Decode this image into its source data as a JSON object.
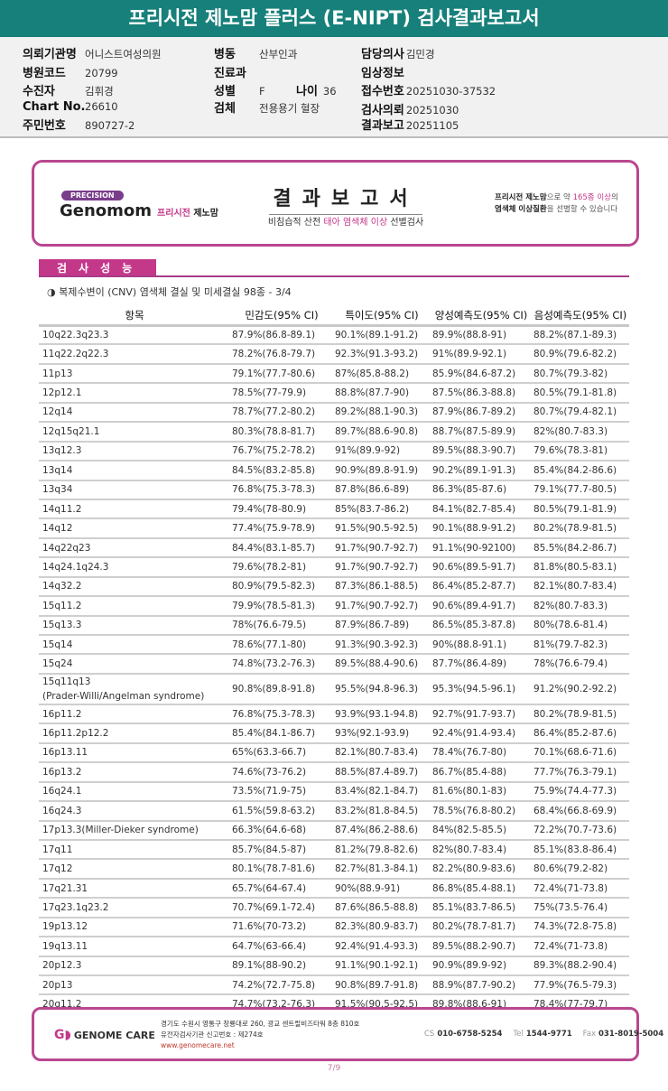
{
  "title": "프리시전 제노맘 플러스 (E-NIPT) 검사결과보고서",
  "info": {
    "institution": {
      "label": "의뢰기관명",
      "value": "어니스트여성의원"
    },
    "hospital_code": {
      "label": "병원코드",
      "value": "20799"
    },
    "patient": {
      "label": "수진자",
      "value": "김휘경"
    },
    "chart_no": {
      "label": "Chart No.",
      "value": "26610"
    },
    "resident_no": {
      "label": "주민번호",
      "value": "890727-2"
    },
    "ward": {
      "label": "병동",
      "value": "산부인과"
    },
    "department": {
      "label": "진료과",
      "value": ""
    },
    "sex": {
      "label": "성별",
      "value": "F"
    },
    "age": {
      "label": "나이",
      "value": "36"
    },
    "specimen": {
      "label": "검체",
      "value": "전용용기 혈장"
    },
    "doctor": {
      "label": "담당의사",
      "value": "김민경"
    },
    "clinical_info": {
      "label": "임상정보",
      "value": ""
    },
    "receipt_no": {
      "label": "접수번호",
      "value": "20251030-37532"
    },
    "request_date": {
      "label": "검사의뢰",
      "value": "20251030"
    },
    "report_date": {
      "label": "결과보고",
      "value": "20251105"
    }
  },
  "banner": {
    "precision": "PRECISION",
    "brand": "Genomom",
    "brand_kr_a": "프리시전",
    "brand_kr_b": "제노맘",
    "title": "결과보고서",
    "subtitle_a": "비침습적 산전",
    "subtitle_b": "태아 염색체 이상",
    "subtitle_c": "선별검사",
    "right_a": "프리시전 제노맘",
    "right_b": "으로 약",
    "right_c": "165종 이상",
    "right_d": "의",
    "right_e": "염색체 이상질환",
    "right_f": "을 선별할 수 있습니다"
  },
  "section": {
    "title": "검사성능",
    "subtitle": "◑ 복제수변이 (CNV) 염색체 결실 및 미세결실 98종 - 3/4"
  },
  "table": {
    "headers": [
      "항목",
      "민감도(95% CI)",
      "특이도(95% CI)",
      "양성예측도(95% CI)",
      "음성예측도(95% CI)"
    ],
    "rows": [
      [
        "10q22.3q23.3",
        "87.9%(86.8-89.1)",
        "90.1%(89.1-91.2)",
        "89.9%(88.8-91)",
        "88.2%(87.1-89.3)"
      ],
      [
        "11q22.2q22.3",
        "78.2%(76.8-79.7)",
        "92.3%(91.3-93.2)",
        "91%(89.9-92.1)",
        "80.9%(79.6-82.2)"
      ],
      [
        "11p13",
        "79.1%(77.7-80.6)",
        "87%(85.8-88.2)",
        "85.9%(84.6-87.2)",
        "80.7%(79.3-82)"
      ],
      [
        "12p12.1",
        "78.5%(77-79.9)",
        "88.8%(87.7-90)",
        "87.5%(86.3-88.8)",
        "80.5%(79.1-81.8)"
      ],
      [
        "12q14",
        "78.7%(77.2-80.2)",
        "89.2%(88.1-90.3)",
        "87.9%(86.7-89.2)",
        "80.7%(79.4-82.1)"
      ],
      [
        "12q15q21.1",
        "80.3%(78.8-81.7)",
        "89.7%(88.6-90.8)",
        "88.7%(87.5-89.9)",
        "82%(80.7-83.3)"
      ],
      [
        "13q12.3",
        "76.7%(75.2-78.2)",
        "91%(89.9-92)",
        "89.5%(88.3-90.7)",
        "79.6%(78.3-81)"
      ],
      [
        "13q14",
        "84.5%(83.2-85.8)",
        "90.9%(89.8-91.9)",
        "90.2%(89.1-91.3)",
        "85.4%(84.2-86.6)"
      ],
      [
        "13q34",
        "76.8%(75.3-78.3)",
        "87.8%(86.6-89)",
        "86.3%(85-87.6)",
        "79.1%(77.7-80.5)"
      ],
      [
        "14q11.2",
        "79.4%(78-80.9)",
        "85%(83.7-86.2)",
        "84.1%(82.7-85.4)",
        "80.5%(79.1-81.9)"
      ],
      [
        "14q12",
        "77.4%(75.9-78.9)",
        "91.5%(90.5-92.5)",
        "90.1%(88.9-91.2)",
        "80.2%(78.9-81.5)"
      ],
      [
        "14q22q23",
        "84.4%(83.1-85.7)",
        "91.7%(90.7-92.7)",
        "91.1%(90-92100)",
        "85.5%(84.2-86.7)"
      ],
      [
        "14q24.1q24.3",
        "79.6%(78.2-81)",
        "91.7%(90.7-92.7)",
        "90.6%(89.5-91.7)",
        "81.8%(80.5-83.1)"
      ],
      [
        "14q32.2",
        "80.9%(79.5-82.3)",
        "87.3%(86.1-88.5)",
        "86.4%(85.2-87.7)",
        "82.1%(80.7-83.4)"
      ],
      [
        "15q11.2",
        "79.9%(78.5-81.3)",
        "91.7%(90.7-92.7)",
        "90.6%(89.4-91.7)",
        "82%(80.7-83.3)"
      ],
      [
        "15q13.3",
        "78%(76.6-79.5)",
        "87.9%(86.7-89)",
        "86.5%(85.3-87.8)",
        "80%(78.6-81.4)"
      ],
      [
        "15q14",
        "78.6%(77.1-80)",
        "91.3%(90.3-92.3)",
        "90%(88.8-91.1)",
        "81%(79.7-82.3)"
      ],
      [
        "15q24",
        "74.8%(73.2-76.3)",
        "89.5%(88.4-90.6)",
        "87.7%(86.4-89)",
        "78%(76.6-79.4)"
      ],
      [
        "15q11q13\n(Prader-Willi/Angelman syndrome)",
        "90.8%(89.8-91.8)",
        "95.5%(94.8-96.3)",
        "95.3%(94.5-96.1)",
        "91.2%(90.2-92.2)"
      ],
      [
        "16p11.2",
        "76.8%(75.3-78.3)",
        "93.9%(93.1-94.8)",
        "92.7%(91.7-93.7)",
        "80.2%(78.9-81.5)"
      ],
      [
        "16p11.2p12.2",
        "85.4%(84.1-86.7)",
        "93%(92.1-93.9)",
        "92.4%(91.4-93.4)",
        "86.4%(85.2-87.6)"
      ],
      [
        "16p13.11",
        "65%(63.3-66.7)",
        "82.1%(80.7-83.4)",
        "78.4%(76.7-80)",
        "70.1%(68.6-71.6)"
      ],
      [
        "16p13.2",
        "74.6%(73-76.2)",
        "88.5%(87.4-89.7)",
        "86.7%(85.4-88)",
        "77.7%(76.3-79.1)"
      ],
      [
        "16q24.1",
        "73.5%(71.9-75)",
        "83.4%(82.1-84.7)",
        "81.6%(80.1-83)",
        "75.9%(74.4-77.3)"
      ],
      [
        "16q24.3",
        "61.5%(59.8-63.2)",
        "83.2%(81.8-84.5)",
        "78.5%(76.8-80.2)",
        "68.4%(66.8-69.9)"
      ],
      [
        "17p13.3(Miller-Dieker syndrome)",
        "66.3%(64.6-68)",
        "87.4%(86.2-88.6)",
        "84%(82.5-85.5)",
        "72.2%(70.7-73.6)"
      ],
      [
        "17q11",
        "85.7%(84.5-87)",
        "81.2%(79.8-82.6)",
        "82%(80.7-83.4)",
        "85.1%(83.8-86.4)"
      ],
      [
        "17q12",
        "80.1%(78.7-81.6)",
        "82.7%(81.3-84.1)",
        "82.2%(80.9-83.6)",
        "80.6%(79.2-82)"
      ],
      [
        "17q21.31",
        "65.7%(64-67.4)",
        "90%(88.9-91)",
        "86.8%(85.4-88.1)",
        "72.4%(71-73.8)"
      ],
      [
        "17q23.1q23.2",
        "70.7%(69.1-72.4)",
        "87.6%(86.5-88.8)",
        "85.1%(83.7-86.5)",
        "75%(73.5-76.4)"
      ],
      [
        "19p13.12",
        "71.6%(70-73.2)",
        "82.3%(80.9-83.7)",
        "80.2%(78.7-81.7)",
        "74.3%(72.8-75.8)"
      ],
      [
        "19q13.11",
        "64.7%(63-66.4)",
        "92.4%(91.4-93.3)",
        "89.5%(88.2-90.7)",
        "72.4%(71-73.8)"
      ],
      [
        "20p12.3",
        "89.1%(88-90.2)",
        "91.1%(90.1-92.1)",
        "90.9%(89.9-92)",
        "89.3%(88.2-90.4)"
      ],
      [
        "20p13",
        "74.2%(72.7-75.8)",
        "90.8%(89.7-91.8)",
        "88.9%(87.7-90.2)",
        "77.9%(76.5-79.3)"
      ],
      [
        "20q11.2",
        "74.7%(73.2-76.3)",
        "91.5%(90.5-92.5)",
        "89.8%(88.6-91)",
        "78.4%(77-79.7)"
      ]
    ]
  },
  "footer": {
    "logo": "GENOME CARE",
    "address": "경기도 수원시 영통구 창룡대로 260, 광교 센트럴비즈타워 8층 810호",
    "registration": "유전자검사기관 신고번호 : 제274호",
    "website": "www.genomecare.net",
    "cs_label": "CS",
    "cs": "010-6758-5254",
    "tel_label": "Tel",
    "tel": "1544-9771",
    "fax_label": "Fax",
    "fax": "031-8019-5004"
  },
  "page": "7/9",
  "colors": {
    "title_bar": "#17807a",
    "accent": "#c4388a",
    "border": "#b9478f"
  }
}
